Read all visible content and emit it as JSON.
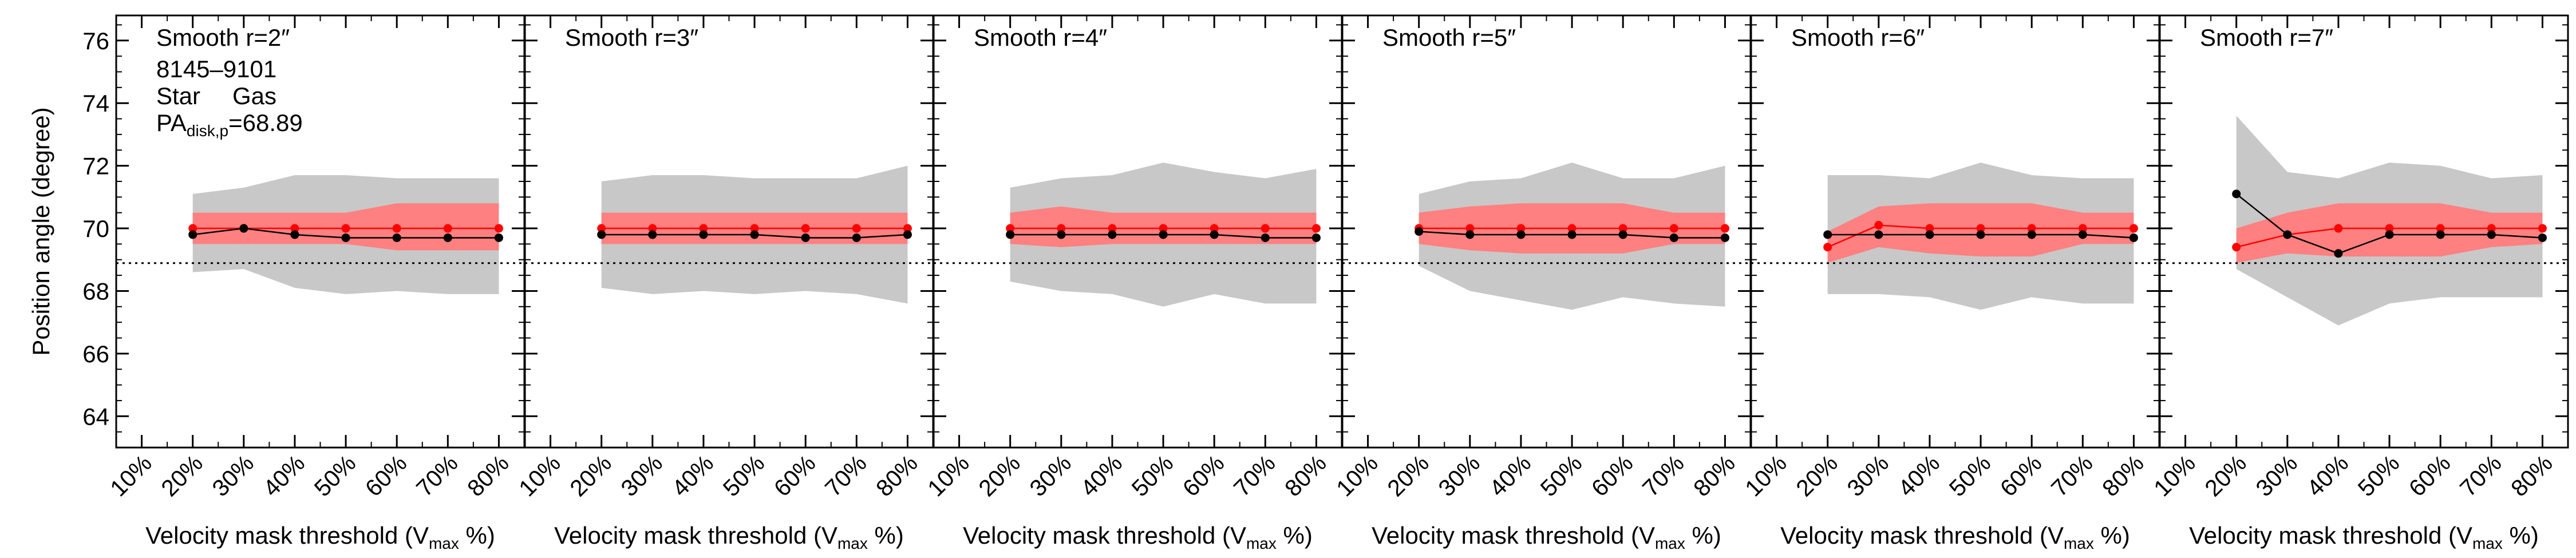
{
  "figure": {
    "galaxy_id": "8145–9101",
    "legend_star": "Star",
    "legend_gas": "Gas",
    "pa_main": "PA",
    "pa_sub": "disk,p",
    "pa_eq": "=68.89",
    "ylabel": "Position angle (degree)",
    "xlabel_main": "Velocity mask threshold (V",
    "xlabel_sub": "max",
    "xlabel_end": " %)"
  },
  "colors": {
    "star": "#000000",
    "gas": "#ff0000",
    "gas_band": "#ff8080",
    "star_band": "#c8c8c8"
  },
  "chart_data": [
    {
      "type": "line",
      "title": "Smooth r=2″",
      "x": [
        20,
        30,
        40,
        50,
        60,
        70,
        80
      ],
      "categories": [
        "10%",
        "20%",
        "30%",
        "40%",
        "50%",
        "60%",
        "70%",
        "80%"
      ],
      "xlim": [
        5,
        85
      ],
      "ylim": [
        63,
        76.8
      ],
      "yticks": [
        64,
        66,
        68,
        70,
        72,
        74,
        76
      ],
      "reference_y": 68.89,
      "series": [
        {
          "name": "Star",
          "values": [
            69.8,
            70.0,
            69.8,
            69.7,
            69.7,
            69.7,
            69.7
          ],
          "band_low": [
            68.6,
            68.7,
            68.1,
            67.9,
            68.0,
            67.9,
            67.9
          ],
          "band_high": [
            71.1,
            71.3,
            71.7,
            71.7,
            71.6,
            71.6,
            71.6
          ]
        },
        {
          "name": "Gas",
          "values": [
            70.0,
            70.0,
            70.0,
            70.0,
            70.0,
            70.0,
            70.0
          ],
          "band_low": [
            69.5,
            69.5,
            69.5,
            69.5,
            69.3,
            69.3,
            69.3
          ],
          "band_high": [
            70.5,
            70.5,
            70.5,
            70.5,
            70.8,
            70.8,
            70.8
          ]
        }
      ]
    },
    {
      "type": "line",
      "title": "Smooth r=3″",
      "x": [
        20,
        30,
        40,
        50,
        60,
        70,
        80
      ],
      "categories": [
        "10%",
        "20%",
        "30%",
        "40%",
        "50%",
        "60%",
        "70%",
        "80%"
      ],
      "xlim": [
        5,
        85
      ],
      "ylim": [
        63,
        76.8
      ],
      "yticks": [
        64,
        66,
        68,
        70,
        72,
        74,
        76
      ],
      "reference_y": 68.89,
      "series": [
        {
          "name": "Star",
          "values": [
            69.8,
            69.8,
            69.8,
            69.8,
            69.7,
            69.7,
            69.8
          ],
          "band_low": [
            68.1,
            67.9,
            68.0,
            67.9,
            68.0,
            67.9,
            67.6
          ],
          "band_high": [
            71.5,
            71.7,
            71.7,
            71.6,
            71.6,
            71.6,
            72.0
          ]
        },
        {
          "name": "Gas",
          "values": [
            70.0,
            70.0,
            70.0,
            70.0,
            70.0,
            70.0,
            70.0
          ],
          "band_low": [
            69.5,
            69.5,
            69.5,
            69.5,
            69.5,
            69.5,
            69.5
          ],
          "band_high": [
            70.5,
            70.5,
            70.5,
            70.5,
            70.5,
            70.5,
            70.5
          ]
        }
      ]
    },
    {
      "type": "line",
      "title": "Smooth r=4″",
      "x": [
        20,
        30,
        40,
        50,
        60,
        70,
        80
      ],
      "categories": [
        "10%",
        "20%",
        "30%",
        "40%",
        "50%",
        "60%",
        "70%",
        "80%"
      ],
      "xlim": [
        5,
        85
      ],
      "ylim": [
        63,
        76.8
      ],
      "yticks": [
        64,
        66,
        68,
        70,
        72,
        74,
        76
      ],
      "reference_y": 68.89,
      "series": [
        {
          "name": "Star",
          "values": [
            69.8,
            69.8,
            69.8,
            69.8,
            69.8,
            69.7,
            69.7
          ],
          "band_low": [
            68.3,
            68.0,
            67.9,
            67.5,
            67.9,
            67.6,
            67.6
          ],
          "band_high": [
            71.3,
            71.6,
            71.7,
            72.1,
            71.8,
            71.6,
            71.9
          ]
        },
        {
          "name": "Gas",
          "values": [
            70.0,
            70.0,
            70.0,
            70.0,
            70.0,
            70.0,
            70.0
          ],
          "band_low": [
            69.5,
            69.4,
            69.5,
            69.5,
            69.5,
            69.5,
            69.5
          ],
          "band_high": [
            70.5,
            70.7,
            70.5,
            70.5,
            70.5,
            70.5,
            70.5
          ]
        }
      ]
    },
    {
      "type": "line",
      "title": "Smooth r=5″",
      "x": [
        20,
        30,
        40,
        50,
        60,
        70,
        80
      ],
      "categories": [
        "10%",
        "20%",
        "30%",
        "40%",
        "50%",
        "60%",
        "70%",
        "80%"
      ],
      "xlim": [
        5,
        85
      ],
      "ylim": [
        63,
        76.8
      ],
      "yticks": [
        64,
        66,
        68,
        70,
        72,
        74,
        76
      ],
      "reference_y": 68.89,
      "series": [
        {
          "name": "Star",
          "values": [
            69.9,
            69.8,
            69.8,
            69.8,
            69.8,
            69.7,
            69.7
          ],
          "band_low": [
            68.8,
            68.0,
            67.7,
            67.4,
            67.8,
            67.6,
            67.5
          ],
          "band_high": [
            71.1,
            71.5,
            71.6,
            72.1,
            71.6,
            71.6,
            72.0
          ]
        },
        {
          "name": "Gas",
          "values": [
            70.0,
            70.0,
            70.0,
            70.0,
            70.0,
            70.0,
            70.0
          ],
          "band_low": [
            69.5,
            69.3,
            69.2,
            69.2,
            69.2,
            69.5,
            69.5
          ],
          "band_high": [
            70.5,
            70.7,
            70.8,
            70.8,
            70.8,
            70.5,
            70.5
          ]
        }
      ]
    },
    {
      "type": "line",
      "title": "Smooth r=6″",
      "x": [
        20,
        30,
        40,
        50,
        60,
        70,
        80
      ],
      "categories": [
        "10%",
        "20%",
        "30%",
        "40%",
        "50%",
        "60%",
        "70%",
        "80%"
      ],
      "xlim": [
        5,
        85
      ],
      "ylim": [
        63,
        76.8
      ],
      "yticks": [
        64,
        66,
        68,
        70,
        72,
        74,
        76
      ],
      "reference_y": 68.89,
      "series": [
        {
          "name": "Star",
          "values": [
            69.8,
            69.8,
            69.8,
            69.8,
            69.8,
            69.8,
            69.7
          ],
          "band_low": [
            67.9,
            67.9,
            67.8,
            67.4,
            67.8,
            67.6,
            67.6
          ],
          "band_high": [
            71.7,
            71.7,
            71.6,
            72.1,
            71.7,
            71.6,
            71.6
          ]
        },
        {
          "name": "Gas",
          "values": [
            69.4,
            70.1,
            70.0,
            70.0,
            70.0,
            70.0,
            70.0
          ],
          "band_low": [
            68.9,
            69.4,
            69.2,
            69.1,
            69.1,
            69.5,
            69.5
          ],
          "band_high": [
            69.9,
            70.7,
            70.8,
            70.8,
            70.8,
            70.5,
            70.5
          ]
        }
      ]
    },
    {
      "type": "line",
      "title": "Smooth r=7″",
      "x": [
        20,
        30,
        40,
        50,
        60,
        70,
        80
      ],
      "categories": [
        "10%",
        "20%",
        "30%",
        "40%",
        "50%",
        "60%",
        "70%",
        "80%"
      ],
      "xlim": [
        5,
        85
      ],
      "ylim": [
        63,
        76.8
      ],
      "yticks": [
        64,
        66,
        68,
        70,
        72,
        74,
        76
      ],
      "reference_y": 68.89,
      "series": [
        {
          "name": "Star",
          "values": [
            71.1,
            69.8,
            69.2,
            69.8,
            69.8,
            69.8,
            69.7
          ],
          "band_low": [
            68.7,
            67.8,
            66.9,
            67.6,
            67.8,
            67.8,
            67.8
          ],
          "band_high": [
            73.6,
            71.8,
            71.6,
            72.1,
            72.0,
            71.6,
            71.7
          ]
        },
        {
          "name": "Gas",
          "values": [
            69.4,
            69.8,
            70.0,
            70.0,
            70.0,
            70.0,
            70.0
          ],
          "band_low": [
            68.9,
            69.2,
            69.1,
            69.1,
            69.1,
            69.4,
            69.5
          ],
          "band_high": [
            70.0,
            70.5,
            70.8,
            70.8,
            70.8,
            70.5,
            70.5
          ]
        }
      ]
    }
  ]
}
